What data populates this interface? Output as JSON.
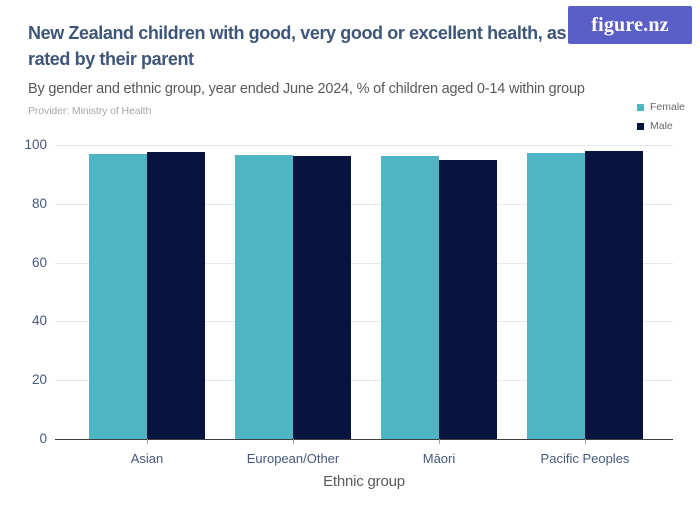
{
  "brand": {
    "logo_text": "figure.nz",
    "logo_bg": "#5a5fc7",
    "logo_fg": "#ffffff"
  },
  "header": {
    "title": "New Zealand children with good, very good or excellent health, as rated by their parent",
    "title_lines": [
      "New Zealand children with good, very good or excellent health, as",
      "rated by their parent"
    ],
    "subtitle": "By gender and ethnic group, year ended June 2024, % of children aged 0-14 within group",
    "provider": "Provider: Ministry of Health",
    "title_color": "#3d5679"
  },
  "chart_data": {
    "type": "bar",
    "title": "New Zealand children with good, very good or excellent health, as rated by their parent",
    "subtitle": "By gender and ethnic group, year ended June 2024, % of children aged 0-14 within group",
    "categories": [
      "Asian",
      "European/Other",
      "Māori",
      "Pacific Peoples"
    ],
    "series": [
      {
        "name": "Female",
        "color": "#4db5c4",
        "values": [
          96.9,
          96.7,
          96.4,
          97.2
        ]
      },
      {
        "name": "Male",
        "color": "#06143f",
        "values": [
          97.6,
          96.3,
          95.0,
          97.9
        ]
      }
    ],
    "xlabel": "Ethnic group",
    "ylabel": "",
    "ylim": [
      0,
      100
    ],
    "yticks": [
      0,
      20,
      40,
      60,
      80,
      100
    ],
    "grid": true,
    "legend_position": "top-right",
    "axis_label_color": "#44587c",
    "gridline_color": "#e8e8eb"
  }
}
